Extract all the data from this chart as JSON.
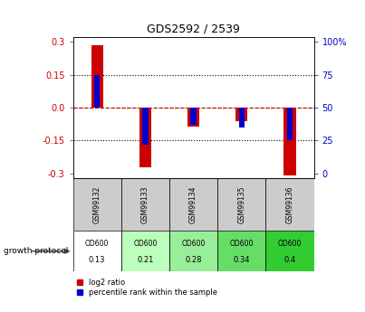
{
  "title": "GDS2592 / 2539",
  "samples": [
    "GSM99132",
    "GSM99133",
    "GSM99134",
    "GSM99135",
    "GSM99136"
  ],
  "log2_ratio": [
    0.285,
    -0.27,
    -0.085,
    -0.06,
    -0.31
  ],
  "percentile_rank": [
    75,
    22,
    37,
    35,
    25
  ],
  "od600_values": [
    "0.13",
    "0.21",
    "0.28",
    "0.34",
    "0.4"
  ],
  "od600_colors": [
    "#ffffff",
    "#bbffbb",
    "#99ee99",
    "#66dd66",
    "#33cc33"
  ],
  "bar_color_red": "#cc0000",
  "bar_color_blue": "#0000cc",
  "ylim": [
    -0.32,
    0.32
  ],
  "yticks_left": [
    -0.3,
    -0.15,
    0.0,
    0.15,
    0.3
  ],
  "yticks_right": [
    0,
    25,
    50,
    75,
    100
  ],
  "dotted_lines": [
    -0.15,
    0.15
  ],
  "zero_line": 0.0,
  "legend_red": "log2 ratio",
  "legend_blue": "percentile rank within the sample",
  "growth_protocol_label": "growth protocol",
  "background_color": "#ffffff",
  "plot_bg": "#ffffff",
  "axis_label_color_left": "#cc0000",
  "axis_label_color_right": "#0000cc",
  "red_bar_width": 0.25,
  "blue_bar_width": 0.12
}
